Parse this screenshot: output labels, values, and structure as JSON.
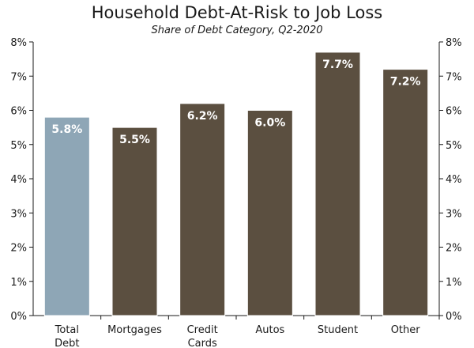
{
  "chart_data": {
    "type": "bar",
    "title": "Household Debt-At-Risk to Job Loss",
    "subtitle": "Share of Debt Category, Q2-2020",
    "categories": [
      [
        "Total",
        "Debt"
      ],
      [
        "Mortgages"
      ],
      [
        "Credit",
        "Cards"
      ],
      [
        "Autos"
      ],
      [
        "Student"
      ],
      [
        "Other"
      ]
    ],
    "values": [
      5.8,
      5.5,
      6.2,
      6.0,
      7.7,
      7.2
    ],
    "data_labels": [
      "5.8%",
      "5.5%",
      "6.2%",
      "6.0%",
      "7.7%",
      "7.2%"
    ],
    "bar_colors": [
      "#8ea6b6",
      "#5b4f40",
      "#5b4f40",
      "#5b4f40",
      "#5b4f40",
      "#5b4f40"
    ],
    "label_color": "#ffffff",
    "ylim": [
      0,
      8
    ],
    "y_ticks": [
      0,
      1,
      2,
      3,
      4,
      5,
      6,
      7,
      8
    ],
    "y_tick_labels": [
      "0%",
      "1%",
      "2%",
      "3%",
      "4%",
      "5%",
      "6%",
      "7%",
      "8%"
    ],
    "dual_y_axis": true,
    "grid": false,
    "legend": "none"
  }
}
